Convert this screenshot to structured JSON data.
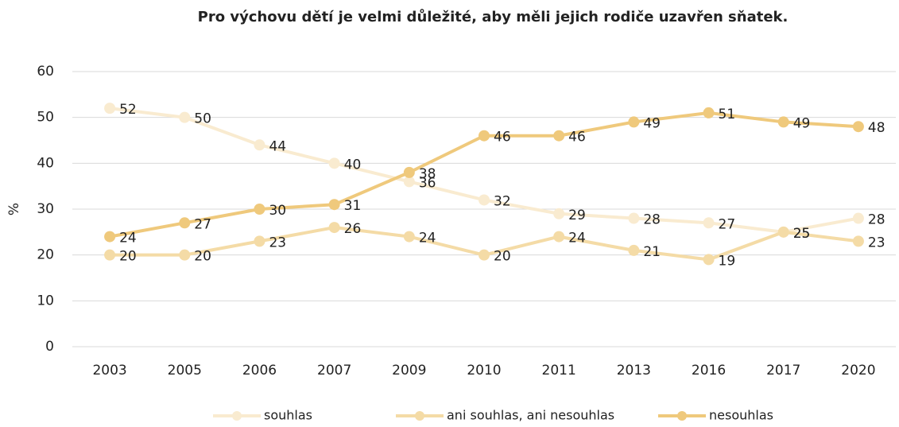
{
  "chart_data": {
    "type": "line",
    "title": "Pro výchovu dětí je velmi důležité, aby měli jejich rodiče uzavřen sňatek.",
    "y_label": "%",
    "categories": [
      "2003",
      "2005",
      "2006",
      "2007",
      "2009",
      "2010",
      "2011",
      "2013",
      "2016",
      "2017",
      "2020"
    ],
    "series": [
      {
        "name": "souhlas",
        "color": "#f9ebd0",
        "values": [
          52,
          50,
          44,
          40,
          36,
          32,
          29,
          28,
          27,
          25,
          28
        ]
      },
      {
        "name": "ani souhlas, ani nesouhlas",
        "color": "#f4dba6",
        "values": [
          20,
          20,
          23,
          26,
          24,
          20,
          24,
          21,
          19,
          25,
          23
        ]
      },
      {
        "name": "nesouhlas",
        "color": "#efc97c",
        "values": [
          24,
          27,
          30,
          31,
          38,
          46,
          46,
          49,
          51,
          49,
          48
        ]
      }
    ],
    "ylim": [
      0,
      60
    ],
    "yticks": [
      0,
      10,
      20,
      30,
      40,
      50,
      60
    ],
    "grid": true,
    "legend": "bottom"
  }
}
